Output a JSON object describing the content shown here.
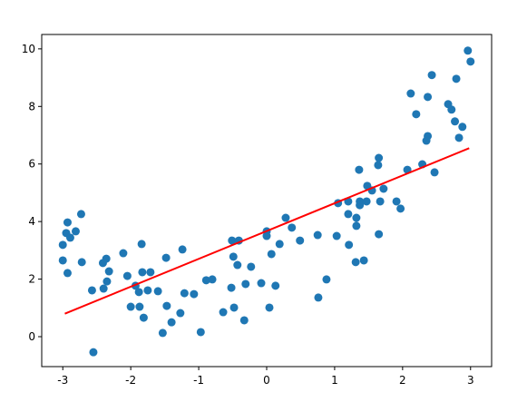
{
  "chart_data": {
    "type": "scatter",
    "points": {
      "color": "#1f77b4",
      "x": [
        -3.0,
        -3.0,
        -2.93,
        -2.95,
        -2.89,
        -2.93,
        -2.81,
        -2.73,
        -2.72,
        -2.57,
        -2.55,
        -2.41,
        -2.36,
        -2.32,
        -2.35,
        -2.4,
        -2.11,
        -2.05,
        -2.0,
        -1.93,
        -1.88,
        -1.84,
        -1.83,
        -1.87,
        -1.81,
        -1.75,
        -1.71,
        -1.6,
        -1.53,
        -1.48,
        -1.47,
        -1.4,
        -1.27,
        -1.24,
        -1.21,
        -1.07,
        -0.97,
        -0.89,
        -0.8,
        -0.64,
        -0.52,
        -0.49,
        -0.51,
        -0.41,
        -0.43,
        -0.48,
        -0.33,
        -0.31,
        -0.23,
        -0.08,
        0.0,
        0.0,
        0.04,
        0.07,
        0.13,
        0.19,
        0.28,
        0.37,
        0.49,
        0.75,
        0.76,
        0.88,
        1.03,
        1.05,
        1.2,
        1.2,
        1.21,
        1.31,
        1.32,
        1.32,
        1.36,
        1.37,
        1.37,
        1.43,
        1.47,
        1.48,
        1.55,
        1.64,
        1.65,
        1.65,
        1.67,
        1.72,
        1.91,
        1.97,
        2.07,
        2.12,
        2.2,
        2.29,
        2.35,
        2.37,
        2.37,
        2.43,
        2.47,
        2.67,
        2.72,
        2.77,
        2.79,
        2.83,
        2.88,
        2.96,
        3.0
      ],
      "y": [
        3.19,
        2.65,
        3.97,
        3.6,
        3.44,
        2.21,
        3.66,
        4.26,
        2.59,
        1.61,
        -0.54,
        2.56,
        2.71,
        2.27,
        1.92,
        1.67,
        2.9,
        2.11,
        1.04,
        1.77,
        1.55,
        3.22,
        2.24,
        1.04,
        0.66,
        1.61,
        2.24,
        1.58,
        0.13,
        2.74,
        1.07,
        0.5,
        0.82,
        3.03,
        1.51,
        1.48,
        0.16,
        1.96,
        1.99,
        0.85,
        1.7,
        2.78,
        3.34,
        3.34,
        2.49,
        1.01,
        0.57,
        1.83,
        2.43,
        1.86,
        3.66,
        3.5,
        1.01,
        2.87,
        1.77,
        3.22,
        4.13,
        3.79,
        3.34,
        3.53,
        1.36,
        1.99,
        3.5,
        4.64,
        4.7,
        4.26,
        3.19,
        2.59,
        3.85,
        4.13,
        5.8,
        4.7,
        4.57,
        2.65,
        4.7,
        5.24,
        5.08,
        5.96,
        6.21,
        3.56,
        4.7,
        5.14,
        4.7,
        4.45,
        5.8,
        8.45,
        7.73,
        5.99,
        6.81,
        6.97,
        8.33,
        9.09,
        5.71,
        8.08,
        7.89,
        7.48,
        8.96,
        6.91,
        7.29,
        9.94,
        9.56
      ]
    },
    "fit_line": {
      "color": "#ff0000",
      "x": [
        -2.97,
        2.98
      ],
      "y": [
        0.8,
        6.55
      ]
    },
    "xlim": [
      -3.31,
      3.31
    ],
    "ylim": [
      -1.04,
      10.5
    ],
    "xticks": [
      -3,
      -2,
      -1,
      0,
      1,
      2,
      3
    ],
    "yticks": [
      0,
      2,
      4,
      6,
      8,
      10
    ]
  }
}
